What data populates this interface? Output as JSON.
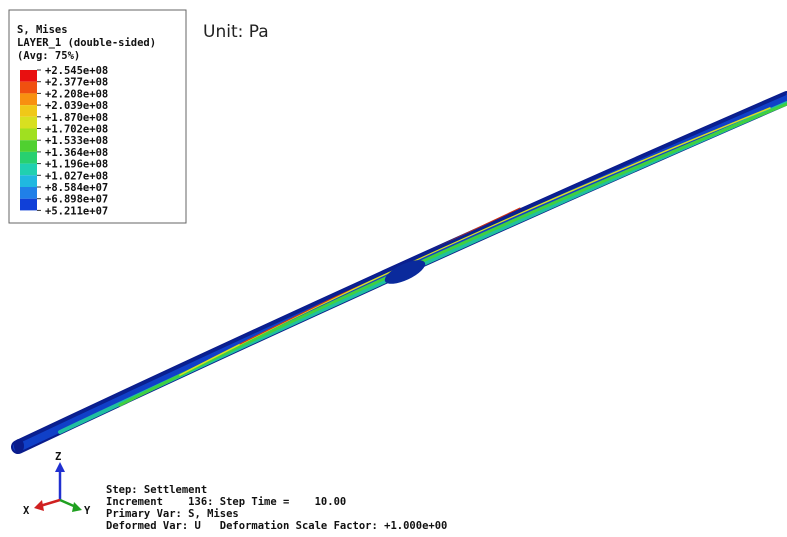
{
  "legend": {
    "title_lines": [
      "S, Mises",
      "LAYER_1 (double-sided)",
      "(Avg: 75%)"
    ],
    "labels": [
      "+2.545e+08",
      "+2.377e+08",
      "+2.208e+08",
      "+2.039e+08",
      "+1.870e+08",
      "+1.702e+08",
      "+1.533e+08",
      "+1.364e+08",
      "+1.196e+08",
      "+1.027e+08",
      "+8.584e+07",
      "+6.898e+07",
      "+5.211e+07"
    ]
  },
  "unit": "Unit: Pa",
  "triad": {
    "z": "Z",
    "x": "X",
    "y": "Y"
  },
  "info": [
    "Step: Settlement",
    "Increment    136: Step Time =    10.00",
    "Primary Var: S, Mises",
    "Deformed Var: U   Deformation Scale Factor: +1.000e+00"
  ]
}
